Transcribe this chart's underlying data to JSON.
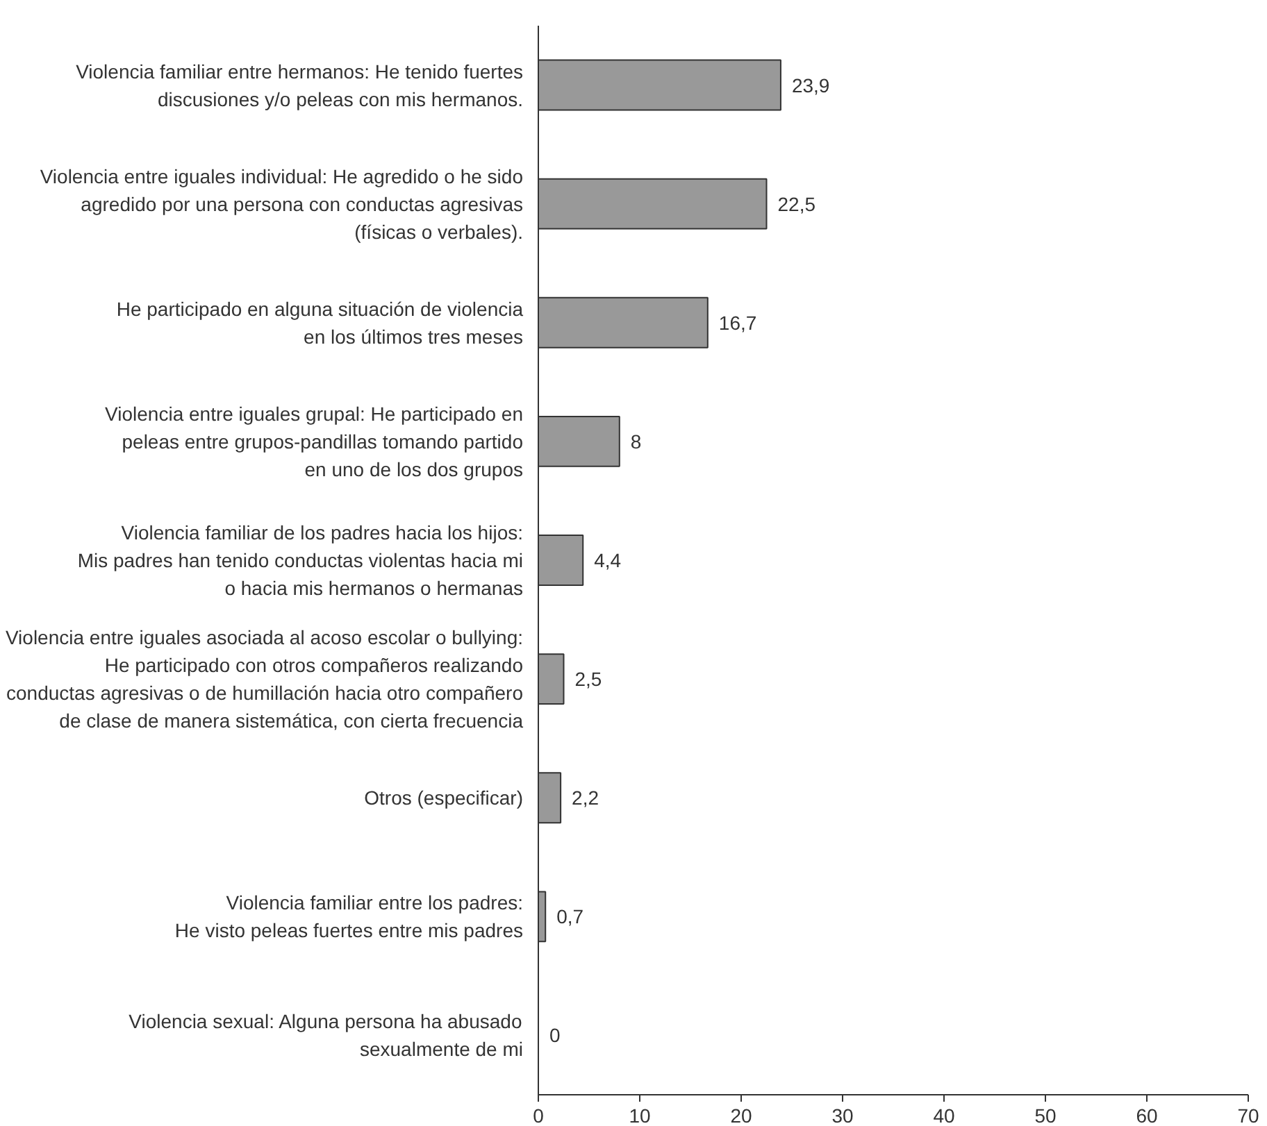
{
  "chart_data": {
    "type": "bar",
    "orientation": "horizontal",
    "categories": [
      "Violencia familiar entre hermanos: He tenido fuertes\ndiscusiones y/o peleas con mis hermanos.",
      "Violencia entre iguales individual: He agredido o he sido\nagredido por una persona con conductas agresivas\n(físicas o verbales).",
      "He participado en alguna situación de violencia\nen los últimos tres meses",
      "Violencia entre iguales grupal: He participado en\npeleas entre grupos-pandillas tomando partido\nen uno de los dos grupos",
      "Violencia familiar de los padres hacia los hijos:\nMis padres han tenido conductas violentas hacia mi\no hacia mis hermanos o hermanas",
      "Violencia entre iguales asociada al acoso escolar o bullying:\nHe participado con otros compañeros realizando\nconductas agresivas o de humillación hacia otro compañero\nde clase de manera sistemática, con cierta frecuencia",
      "Otros (especificar)",
      "Violencia familiar entre los padres:\nHe visto peleas fuertes entre mis padres",
      "Violencia sexual: Alguna persona ha abusado\nsexualmente de mi"
    ],
    "values": [
      23.9,
      22.5,
      16.7,
      8,
      4.4,
      2.5,
      2.2,
      0.7,
      0
    ],
    "value_labels": [
      "23,9",
      "22,5",
      "16,7",
      "8",
      "4,4",
      "2,5",
      "2,2",
      "0,7",
      "0"
    ],
    "color": "#999999",
    "xlim": [
      0,
      70
    ],
    "xticks": [
      0,
      10,
      20,
      30,
      40,
      50,
      60,
      70
    ],
    "grid": false
  }
}
